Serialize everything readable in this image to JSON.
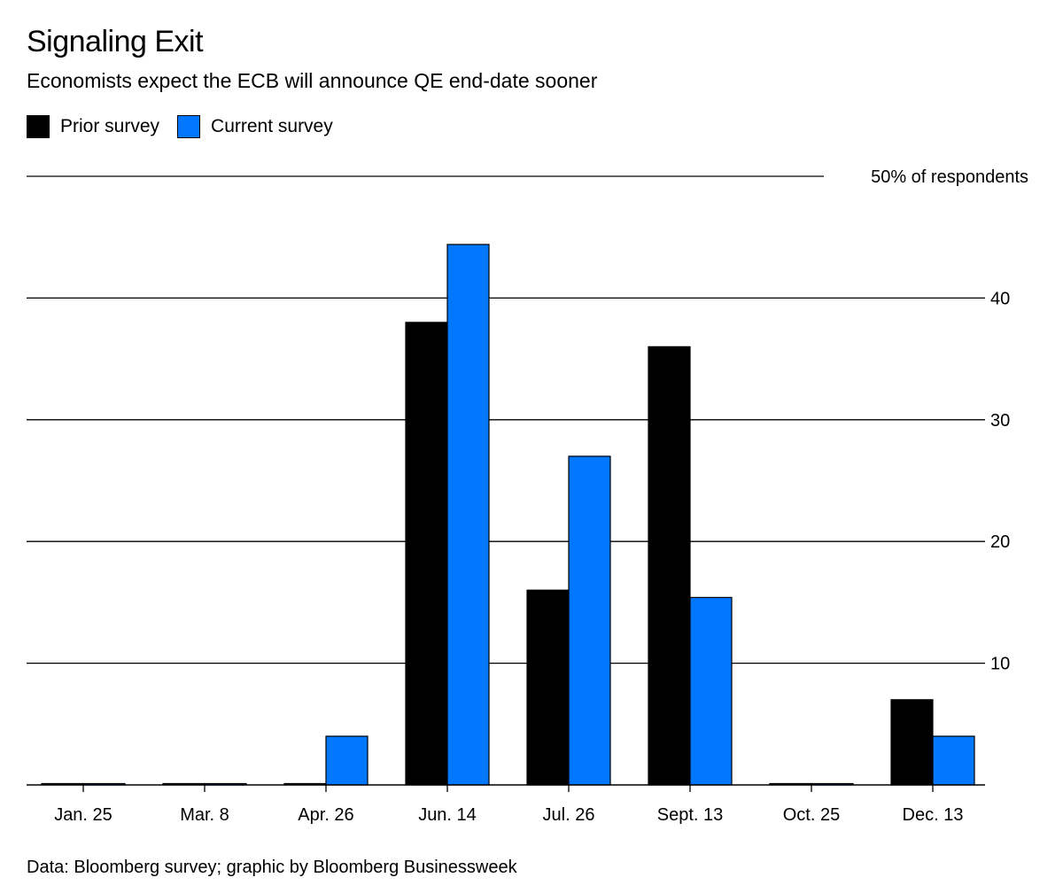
{
  "chart_data": {
    "type": "bar",
    "title": "Signaling Exit",
    "subtitle": "Economists expect the ECB will announce QE end-date sooner",
    "categories": [
      "Jan. 25",
      "Mar. 8",
      "Apr. 26",
      "Jun. 14",
      "Jul. 26",
      "Sept. 13",
      "Oct. 25",
      "Dec. 13"
    ],
    "series": [
      {
        "name": "Prior survey",
        "color": "#000000",
        "values": [
          0,
          0,
          0,
          38,
          16,
          36,
          0,
          7
        ]
      },
      {
        "name": "Current survey",
        "color": "#0077FF",
        "values": [
          0,
          0,
          4,
          44.4,
          27,
          15.4,
          0,
          4
        ]
      }
    ],
    "yticks": [
      {
        "value": 50,
        "label": "50% of respondents"
      },
      {
        "value": 40,
        "label": "40"
      },
      {
        "value": 30,
        "label": "30"
      },
      {
        "value": 20,
        "label": "20"
      },
      {
        "value": 10,
        "label": "10"
      }
    ],
    "ylim": [
      0,
      50
    ],
    "grid": true,
    "legend": "top-left",
    "source": "Data: Bloomberg survey; graphic by Bloomberg Businessweek"
  }
}
